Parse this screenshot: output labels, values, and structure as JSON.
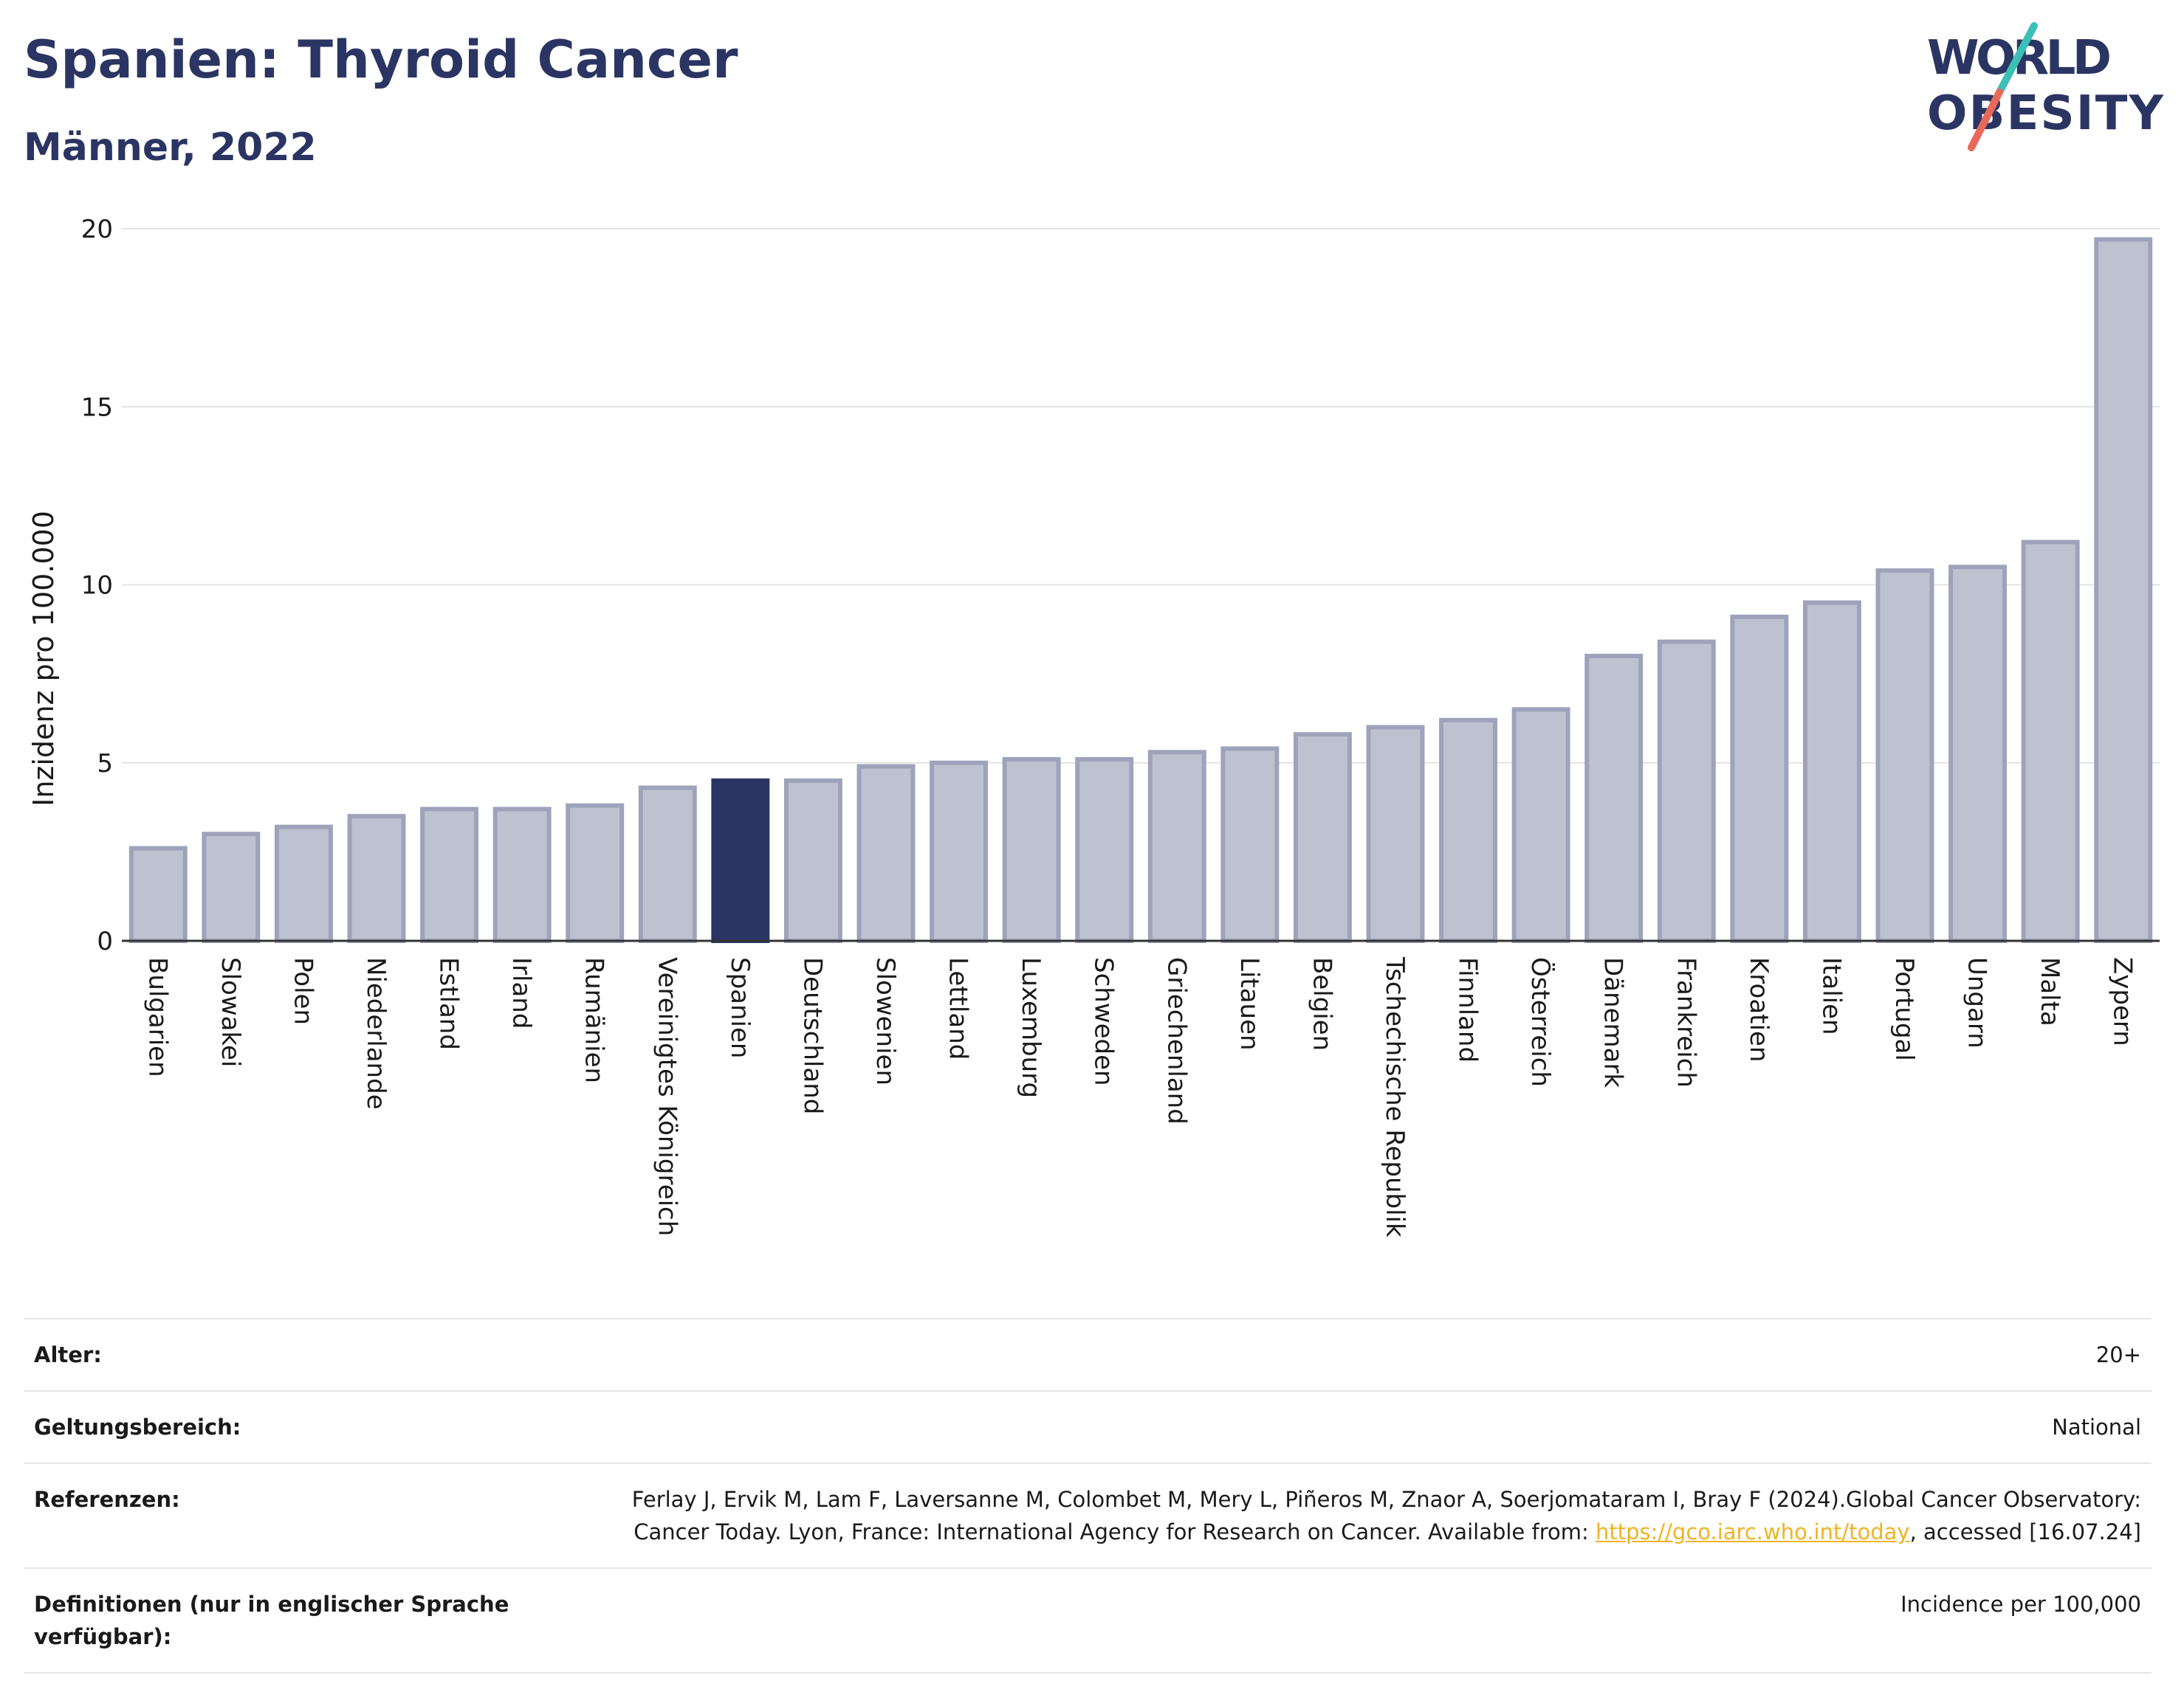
{
  "header": {
    "title": "Spanien: Thyroid Cancer",
    "subtitle": "Männer, 2022",
    "logo_text": "WORLD OBESITY"
  },
  "colors": {
    "title": "#2b3563",
    "highlight_bar": "#2b3563",
    "bar_fill": "#bec2d0",
    "bar_stroke": "#9ea3bb",
    "logo_accent_teal": "#3bbfb7",
    "logo_accent_red": "#e8695a",
    "link": "#f0b323"
  },
  "chart_data": {
    "type": "bar",
    "title": "Spanien: Thyroid Cancer",
    "subtitle": "Männer, 2022",
    "ylabel": "Inzidenz pro 100.000",
    "xlabel": "",
    "ylim": [
      0,
      20
    ],
    "yticks": [
      0,
      5,
      10,
      15,
      20
    ],
    "grid": true,
    "highlight": "Spanien",
    "categories": [
      "Bulgarien",
      "Slowakei",
      "Polen",
      "Niederlande",
      "Estland",
      "Irland",
      "Rumänien",
      "Vereinigtes Königreich",
      "Spanien",
      "Deutschland",
      "Slowenien",
      "Lettland",
      "Luxemburg",
      "Schweden",
      "Griechenland",
      "Litauen",
      "Belgien",
      "Tschechische Republik",
      "Finnland",
      "Österreich",
      "Dänemark",
      "Frankreich",
      "Kroatien",
      "Italien",
      "Portugal",
      "Ungarn",
      "Malta",
      "Zypern"
    ],
    "values": [
      2.6,
      3.0,
      3.2,
      3.5,
      3.7,
      3.7,
      3.8,
      4.3,
      4.5,
      4.5,
      4.9,
      5.0,
      5.1,
      5.1,
      5.3,
      5.4,
      5.8,
      6.0,
      6.2,
      6.5,
      8.0,
      8.4,
      9.1,
      9.5,
      10.4,
      10.5,
      11.2,
      19.7
    ]
  },
  "meta": {
    "age_label": "Alter:",
    "age_value": "20+",
    "scope_label": "Geltungsbereich:",
    "scope_value": "National",
    "ref_label": "Referenzen:",
    "ref_text_1": "Ferlay J, Ervik M, Lam F, Laversanne M, Colombet M, Mery L, Piñeros M, Znaor A, Soerjomataram I, Bray F (2024).Global Cancer Observatory: Cancer Today. Lyon, France: International Agency for Research on Cancer. Available from: ",
    "ref_link": "https://gco.iarc.who.int/today",
    "ref_text_2": ", accessed [16.07.24]",
    "def_label": "Definitionen (nur in englischer Sprache verfügbar):",
    "def_value": "Incidence per 100,000"
  }
}
